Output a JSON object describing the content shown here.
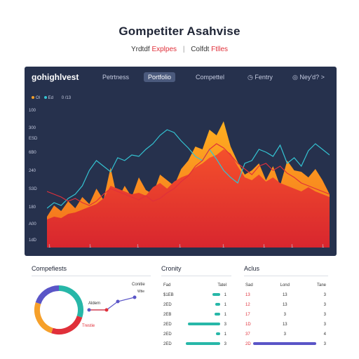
{
  "header": {
    "title": "Gompetiter Asahvise",
    "subtitle_red_1": "Yrdtdf",
    "subtitle_red_2": "Explpes",
    "subtitle_dark": "Colfdt",
    "subtitle_red_3": "Ftlles"
  },
  "dashboard": {
    "brand": "gohighlvest",
    "tabs": [
      "Petrtness",
      "Portfolio",
      "Compettel",
      "Fentry",
      "Ney'd? >"
    ],
    "legend": [
      "Ol",
      "Ed",
      "0 /13"
    ],
    "y_ticks": [
      "100",
      "300",
      "ESD",
      "6B0",
      "240",
      "S3D",
      "180",
      "A00",
      "1dD"
    ],
    "x_ticks": [
      "1",
      "1",
      "1",
      "1",
      "1",
      "1",
      "1",
      "1"
    ],
    "colors": {
      "bg": "#26314d",
      "orange": "#f6a02a",
      "red": "#e0303a",
      "teal": "#27b7a8",
      "cyan": "#34c3d2"
    }
  },
  "chart_data": {
    "type": "area",
    "title": "",
    "x": [
      0,
      1,
      2,
      3,
      4,
      5,
      6,
      7,
      8,
      9,
      10,
      11,
      12,
      13,
      14,
      15,
      16,
      17,
      18,
      19,
      20,
      21,
      22,
      23,
      24,
      25,
      26,
      27,
      28,
      29,
      30,
      31,
      32,
      33,
      34,
      35,
      36,
      37,
      38,
      39,
      40
    ],
    "ylim": [
      0,
      100
    ],
    "series": [
      {
        "values": [
          22,
          30,
          26,
          33,
          28,
          36,
          31,
          42,
          34,
          57,
          34,
          44,
          36,
          50,
          41,
          38,
          52,
          48,
          44,
          56,
          62,
          72,
          70,
          84,
          80,
          90,
          72,
          61,
          52,
          55,
          60,
          48,
          58,
          44,
          62,
          55,
          54,
          50,
          56,
          48,
          38
        ]
      },
      {
        "values": [
          20,
          22,
          21,
          24,
          25,
          27,
          29,
          31,
          35,
          44,
          42,
          40,
          38,
          39,
          37,
          43,
          46,
          42,
          47,
          50,
          52,
          57,
          60,
          64,
          66,
          70,
          67,
          58,
          50,
          48,
          52,
          47,
          50,
          46,
          44,
          42,
          40,
          43,
          40,
          38,
          36
        ]
      },
      {
        "values": [
          28,
          32,
          30,
          35,
          38,
          44,
          55,
          62,
          58,
          54,
          64,
          62,
          66,
          65,
          70,
          74,
          80,
          84,
          82,
          76,
          71,
          65,
          62,
          70,
          63,
          55,
          50,
          46,
          60,
          62,
          70,
          68,
          65,
          73,
          60,
          64,
          58,
          69,
          74,
          70,
          66
        ]
      },
      {
        "values": [
          40,
          38,
          36,
          33,
          35,
          32,
          30,
          33,
          38,
          42,
          40,
          38,
          36,
          34,
          37,
          33,
          35,
          39,
          42,
          47,
          51,
          58,
          62,
          70,
          74,
          71,
          66,
          60,
          56,
          52,
          58,
          60,
          55,
          58,
          53,
          50,
          46,
          44,
          42,
          40,
          38
        ]
      }
    ]
  },
  "competitors": {
    "title": "Compefiests",
    "donut_values": [
      30,
      25,
      25,
      20
    ],
    "donut_colors": [
      "#27b7a8",
      "#e0303a",
      "#f6a02a",
      "#5a55c7"
    ],
    "labels": {
      "top": "Conitie",
      "sub": "Wtie",
      "mid": "Aldem",
      "low": "Trestie"
    }
  },
  "cronity": {
    "title": "Cronity",
    "headers": [
      "Fad",
      "Tatel"
    ],
    "rows": [
      {
        "label": "$1EB",
        "bar": 0.16,
        "val": "1"
      },
      {
        "label": "2ED",
        "bar": 0.1,
        "val": "1"
      },
      {
        "label": "2EB",
        "bar": 0.12,
        "val": "1"
      },
      {
        "label": "2ED",
        "bar": 0.65,
        "val": "3"
      },
      {
        "label": "2ED",
        "bar": 0.08,
        "val": "1"
      },
      {
        "label": "2ED",
        "bar": 0.7,
        "val": "3"
      }
    ]
  },
  "activity": {
    "title": "Aclus",
    "headers": [
      "Sad",
      "Lond",
      "Tane"
    ],
    "rows": [
      {
        "a": "13",
        "b": "13",
        "c": "3"
      },
      {
        "a": "12",
        "b": "13",
        "c": "3"
      },
      {
        "a": "17",
        "b": "3",
        "c": "3"
      },
      {
        "a": "1D",
        "b": "13",
        "c": "3"
      },
      {
        "a": "37",
        "b": "3",
        "c": "4"
      },
      {
        "a": "2D",
        "b": "",
        "c": "3"
      }
    ]
  }
}
